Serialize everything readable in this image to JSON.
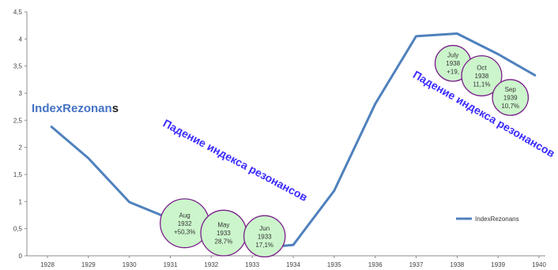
{
  "chart_data": {
    "type": "line",
    "x": [
      "1928",
      "1929",
      "1930",
      "1931",
      "1932",
      "1933",
      "1934",
      "1935",
      "1936",
      "1937",
      "1938",
      "1939",
      "1940"
    ],
    "series": [
      {
        "name": "IndexRezonans",
        "color": "#4f81bd",
        "points": [
          [
            0.1,
            2.38
          ],
          [
            1.0,
            1.8
          ],
          [
            2.0,
            0.99
          ],
          [
            3.0,
            0.68
          ],
          [
            4.0,
            0.5
          ],
          [
            5.0,
            0.32
          ],
          [
            5.7,
            0.18
          ],
          [
            6.0,
            0.2
          ],
          [
            7.0,
            1.2
          ],
          [
            8.0,
            2.8
          ],
          [
            9.0,
            4.05
          ],
          [
            10.0,
            4.1
          ],
          [
            11.0,
            3.72
          ],
          [
            11.9,
            3.33
          ]
        ]
      }
    ],
    "yticks": [
      "0",
      "0,5",
      "1",
      "1,5",
      "2",
      "2,5",
      "3",
      "3,5",
      "4",
      "4,5"
    ],
    "ylim": [
      0,
      4.5
    ],
    "grid": false,
    "legend": "right",
    "overlay_title": {
      "main": "IndexRezonan",
      "tail": "s"
    },
    "annotations": [
      {
        "lines": [
          "Aug",
          "1932",
          "+50,3%"
        ],
        "x": 3.35,
        "y": 0.6,
        "r": 0.45
      },
      {
        "lines": [
          "May",
          "1933",
          "28,7%"
        ],
        "x": 4.3,
        "y": 0.42,
        "r": 0.42
      },
      {
        "lines": [
          "Jun",
          "1933",
          "17,1%"
        ],
        "x": 5.3,
        "y": 0.36,
        "r": 0.38
      },
      {
        "lines": [
          "July",
          "1938",
          "+19,"
        ],
        "x": 9.9,
        "y": 3.55,
        "r": 0.33
      },
      {
        "lines": [
          "Oct",
          "1938",
          "11,1%"
        ],
        "x": 10.6,
        "y": 3.32,
        "r": 0.37
      },
      {
        "lines": [
          "Sep",
          "1939",
          "10,7%"
        ],
        "x": 11.3,
        "y": 2.92,
        "r": 0.33
      }
    ],
    "diagonal_labels": [
      {
        "text": "Падение индекса резонансов",
        "x": 2.8,
        "y": 2.4,
        "angle": 28
      },
      {
        "text": "Падение индекса резонансов",
        "x": 8.9,
        "y": 3.3,
        "angle": 30
      }
    ]
  }
}
